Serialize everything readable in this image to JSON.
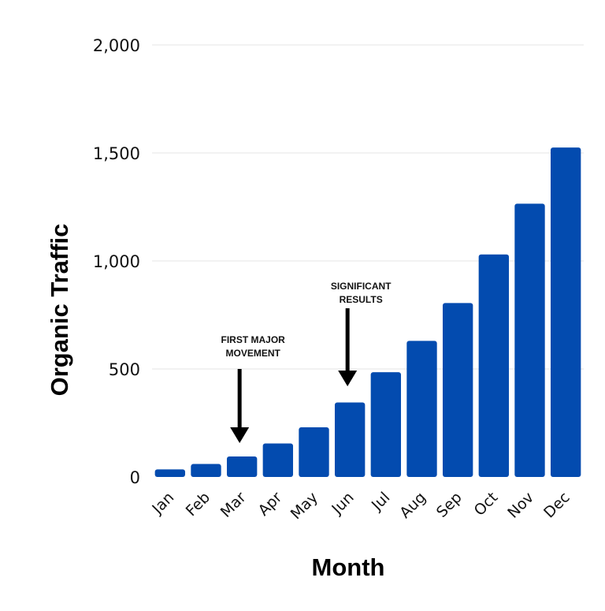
{
  "chart_data": {
    "type": "bar",
    "categories": [
      "Jan",
      "Feb",
      "Mar",
      "Apr",
      "May",
      "Jun",
      "Jul",
      "Aug",
      "Sep",
      "Oct",
      "Nov",
      "Dec"
    ],
    "values": [
      35,
      60,
      95,
      155,
      230,
      345,
      485,
      630,
      805,
      1030,
      1265,
      1525
    ],
    "title": "",
    "xlabel": "Month",
    "ylabel": "Organic Traffic",
    "ylim": [
      0,
      2000
    ],
    "yticks": [
      0,
      500,
      1000,
      1500,
      2000
    ],
    "ytick_labels": [
      "0",
      "500",
      "1,000",
      "1,500",
      "2,000"
    ],
    "grid": true,
    "bar_color": "#034BAF",
    "grid_color": "#E6E6E6",
    "annotations": [
      {
        "category": "Mar",
        "lines": [
          "FIRST MAJOR",
          "MOVEMENT"
        ],
        "arrow": "down"
      },
      {
        "category": "Jun",
        "lines": [
          "SIGNIFICANT",
          "RESULTS"
        ],
        "arrow": "down"
      }
    ]
  }
}
